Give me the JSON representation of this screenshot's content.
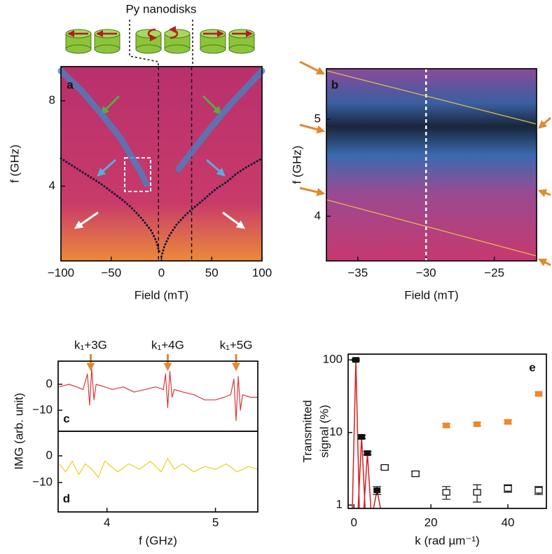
{
  "chart_data": [
    {
      "type": "line",
      "panel": "a",
      "annotation": "Py nanodisks",
      "xlabel": "Field (mT)",
      "ylabel": "f (GHz)",
      "xlim": [
        -100,
        100
      ],
      "ylim": [
        0.5,
        9.6
      ],
      "xticks": [
        {
          "value": -100,
          "label": "−100"
        },
        {
          "value": -50,
          "label": "−50"
        },
        0,
        50,
        100
      ],
      "yticks": [
        4,
        8
      ],
      "vlines": [
        -3,
        30
      ],
      "series": [
        {
          "style": "band",
          "color": "#4a7fc0",
          "x": [
            -100,
            -80,
            -60,
            -40,
            -20,
            -15
          ],
          "values": [
            9.4,
            8.5,
            7.4,
            6.2,
            4.6,
            4.1
          ]
        },
        {
          "style": "band",
          "color": "#4a7fc0",
          "x": [
            17,
            30,
            50,
            70,
            100
          ],
          "values": [
            4.8,
            5.6,
            6.8,
            7.9,
            9.4
          ]
        },
        {
          "style": "dotted",
          "color": "#101030",
          "x": [
            -100,
            -90,
            -80,
            -70,
            -60,
            -50,
            -40,
            -30,
            -20,
            -10,
            -5,
            -2
          ],
          "values": [
            5.3,
            5.0,
            4.7,
            4.4,
            4.1,
            3.75,
            3.4,
            3.0,
            2.5,
            1.9,
            1.4,
            0.9
          ]
        },
        {
          "style": "dotted",
          "color": "#101030",
          "x": [
            0,
            3,
            8,
            15,
            25,
            35,
            45,
            55,
            65,
            75,
            85,
            100
          ],
          "values": [
            0.7,
            1.2,
            1.7,
            2.2,
            2.7,
            3.1,
            3.5,
            3.9,
            4.2,
            4.6,
            4.9,
            5.3
          ]
        }
      ]
    },
    {
      "type": "line",
      "panel": "b",
      "xlabel": "Field (mT)",
      "ylabel": "f (GHz)",
      "xlim": [
        -37.3,
        -21.9
      ],
      "ylim": [
        3.54,
        5.52
      ],
      "xticks": [
        {
          "value": -35,
          "label": "−35"
        },
        {
          "value": -30,
          "label": "−30"
        },
        {
          "value": -25,
          "label": "−25"
        }
      ],
      "yticks": [
        4,
        5
      ],
      "vlines": [
        -30
      ],
      "series": [
        {
          "style": "solid",
          "color": "#e8c050",
          "x": [
            -37.3,
            -21.9
          ],
          "values": [
            5.5,
            4.95
          ]
        },
        {
          "style": "solid",
          "color": "#e8c050",
          "x": [
            -37.3,
            -21.9
          ],
          "values": [
            4.17,
            3.59
          ]
        }
      ]
    },
    {
      "type": "line",
      "panel": "c",
      "ylabel": "IMG (arb. unit)",
      "xlim": [
        3.55,
        5.39
      ],
      "ylim": [
        -18.1,
        8.9
      ],
      "yticks": [
        0,
        {
          "value": -10,
          "label": "−10"
        }
      ],
      "annotations": [
        {
          "text": "k₁+3G",
          "x": 3.85
        },
        {
          "text": "k₁+4G",
          "x": 4.56
        },
        {
          "text": "k₁+5G",
          "x": 5.19
        }
      ],
      "series": [
        {
          "style": "solid",
          "color": "#d83a3a",
          "x": [
            3.56,
            3.65,
            3.72,
            3.78,
            3.82,
            3.84,
            3.86,
            3.88,
            3.9,
            3.98,
            4.05,
            4.15,
            4.25,
            4.35,
            4.45,
            4.52,
            4.54,
            4.56,
            4.58,
            4.6,
            4.62,
            4.7,
            4.8,
            4.9,
            5.0,
            5.08,
            5.14,
            5.17,
            5.19,
            5.21,
            5.23,
            5.25,
            5.32,
            5.39
          ],
          "values": [
            -1,
            0,
            -1,
            -2,
            4,
            -8,
            6,
            -6,
            0,
            -1,
            -2,
            -1,
            -3,
            -2,
            -1,
            -2,
            4,
            -9,
            5,
            -5,
            -2,
            -3,
            -4,
            -6,
            -6,
            -5,
            -4,
            2,
            -14,
            3,
            -10,
            -4,
            -5,
            -5
          ]
        }
      ]
    },
    {
      "type": "line",
      "panel": "d",
      "xlabel": "f (GHz)",
      "xlim": [
        3.55,
        5.39
      ],
      "ylim": [
        -21,
        9.2
      ],
      "xticks": [
        4,
        5
      ],
      "yticks": [
        0,
        {
          "value": -10,
          "label": "−10"
        }
      ],
      "series": [
        {
          "style": "solid",
          "color": "#e8d020",
          "x": [
            3.56,
            3.62,
            3.68,
            3.74,
            3.8,
            3.86,
            3.92,
            3.98,
            4.04,
            4.1,
            4.2,
            4.3,
            4.4,
            4.5,
            4.56,
            4.62,
            4.7,
            4.8,
            4.9,
            5.0,
            5.1,
            5.2,
            5.3,
            5.39
          ],
          "values": [
            -3,
            -6,
            -2,
            -7,
            -3,
            -5,
            -8,
            -2,
            -4,
            -6,
            -3,
            -5,
            -2,
            -6,
            -1,
            -5,
            -3,
            -6,
            -4,
            -5,
            -3,
            -6,
            -4,
            -5
          ]
        }
      ]
    },
    {
      "type": "scatter",
      "panel": "e",
      "xlabel": "k (rad µm⁻¹)",
      "ylabel": [
        "Transmitted",
        "signal (%)"
      ],
      "log_y": true,
      "xlim": [
        -1.5,
        50
      ],
      "ylim": [
        0.9,
        120
      ],
      "xticks": [
        0,
        20,
        40
      ],
      "yticks": [
        1,
        10,
        100
      ],
      "series": [
        {
          "marker": "filled",
          "color": "#111111",
          "spike_color": "#d02020",
          "x": [
            0.5,
            2,
            3.5,
            6
          ],
          "values": [
            100,
            8.7,
            5.2,
            1.6
          ],
          "errors": [
            3,
            0.5,
            0.3,
            0.2
          ]
        },
        {
          "marker": "open",
          "color": "#111111",
          "x": [
            8,
            16,
            24,
            32,
            40,
            48
          ],
          "values": [
            3.3,
            2.7,
            1.5,
            1.5,
            1.7,
            1.6
          ],
          "errors": [
            0.2,
            0.2,
            0.3,
            0.4,
            0.2,
            0.2
          ]
        },
        {
          "marker": "filled",
          "color": "#f0862a",
          "x": [
            24,
            32,
            40,
            48
          ],
          "values": [
            12.5,
            13,
            14,
            34
          ],
          "errors": [
            0.7,
            0.7,
            0.8,
            2
          ]
        }
      ]
    }
  ]
}
